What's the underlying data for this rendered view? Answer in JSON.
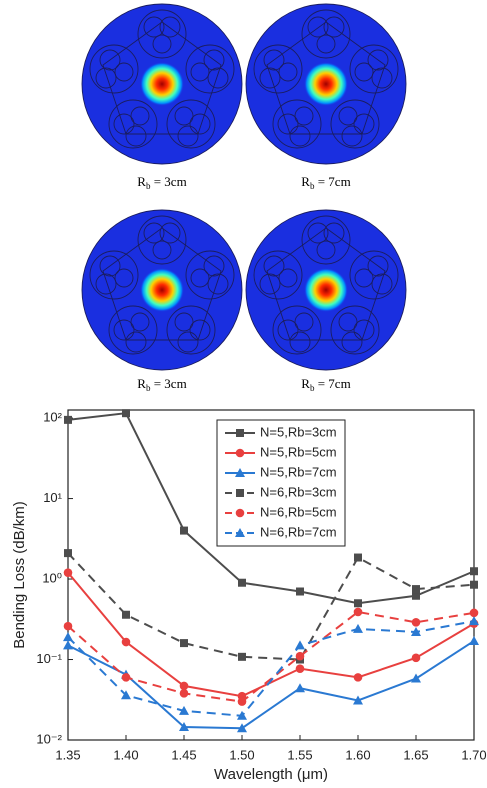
{
  "figures": [
    {
      "caption": {
        "symbol": "R",
        "subscript": "b",
        "text": " = 3cm"
      }
    },
    {
      "caption": {
        "symbol": "R",
        "subscript": "b",
        "text": " = 7cm"
      }
    },
    {
      "caption": {
        "symbol": "R",
        "subscript": "b",
        "text": " = 3cm"
      }
    },
    {
      "caption": {
        "symbol": "R",
        "subscript": "b",
        "text": " = 7cm"
      }
    }
  ],
  "chart_data": {
    "type": "line",
    "x_label": "Wavelength (μm)",
    "y_label": "Bending Loss (dB/km)",
    "x": [
      1.35,
      1.4,
      1.45,
      1.5,
      1.55,
      1.6,
      1.65,
      1.7
    ],
    "xlim": [
      1.35,
      1.7
    ],
    "xticks": [
      1.35,
      {
        "value": 1.4,
        "label": "1.40"
      },
      1.45,
      {
        "value": 1.5,
        "label": "1.50"
      },
      1.55,
      {
        "value": 1.6,
        "label": "1.60"
      },
      1.65,
      {
        "value": 1.7,
        "label": "1.70"
      }
    ],
    "ylim": [
      0.01,
      126
    ],
    "log_y": true,
    "yticks": [
      {
        "value": 0.01,
        "label": "10⁻²"
      },
      {
        "value": 0.1,
        "label": "10⁻¹"
      },
      {
        "value": 1,
        "label": "10⁰"
      },
      {
        "value": 10,
        "label": "10¹"
      },
      {
        "value": 100,
        "label": "10²"
      }
    ],
    "legend": "top-center",
    "series": [
      {
        "name": "N=5,Rb=3cm",
        "color": "#4d4d4d",
        "marker": "square",
        "dashed": false,
        "values": [
          95,
          115,
          4.0,
          0.9,
          0.7,
          0.5,
          0.62,
          1.25
        ]
      },
      {
        "name": "N=5,Rb=5cm",
        "color": "#e8403f",
        "marker": "circle",
        "dashed": false,
        "values": [
          1.2,
          0.165,
          0.047,
          0.035,
          0.077,
          0.06,
          0.105,
          0.28
        ]
      },
      {
        "name": "N=5,Rb=7cm",
        "color": "#2a79d2",
        "marker": "triangle",
        "dashed": false,
        "values": [
          0.15,
          0.065,
          0.0145,
          0.014,
          0.044,
          0.031,
          0.058,
          0.17
        ]
      },
      {
        "name": "N=6,Rb=3cm",
        "color": "#4d4d4d",
        "marker": "square",
        "dashed": true,
        "values": [
          2.1,
          0.36,
          0.16,
          0.108,
          0.1,
          1.85,
          0.75,
          0.85
        ]
      },
      {
        "name": "N=6,Rb=5cm",
        "color": "#e8403f",
        "marker": "circle",
        "dashed": true,
        "values": [
          0.26,
          0.06,
          0.038,
          0.03,
          0.11,
          0.39,
          0.29,
          0.38
        ]
      },
      {
        "name": "N=6,Rb=7cm",
        "color": "#2a79d2",
        "marker": "triangle",
        "dashed": true,
        "values": [
          0.19,
          0.036,
          0.023,
          0.02,
          0.15,
          0.24,
          0.22,
          0.3
        ]
      }
    ]
  }
}
